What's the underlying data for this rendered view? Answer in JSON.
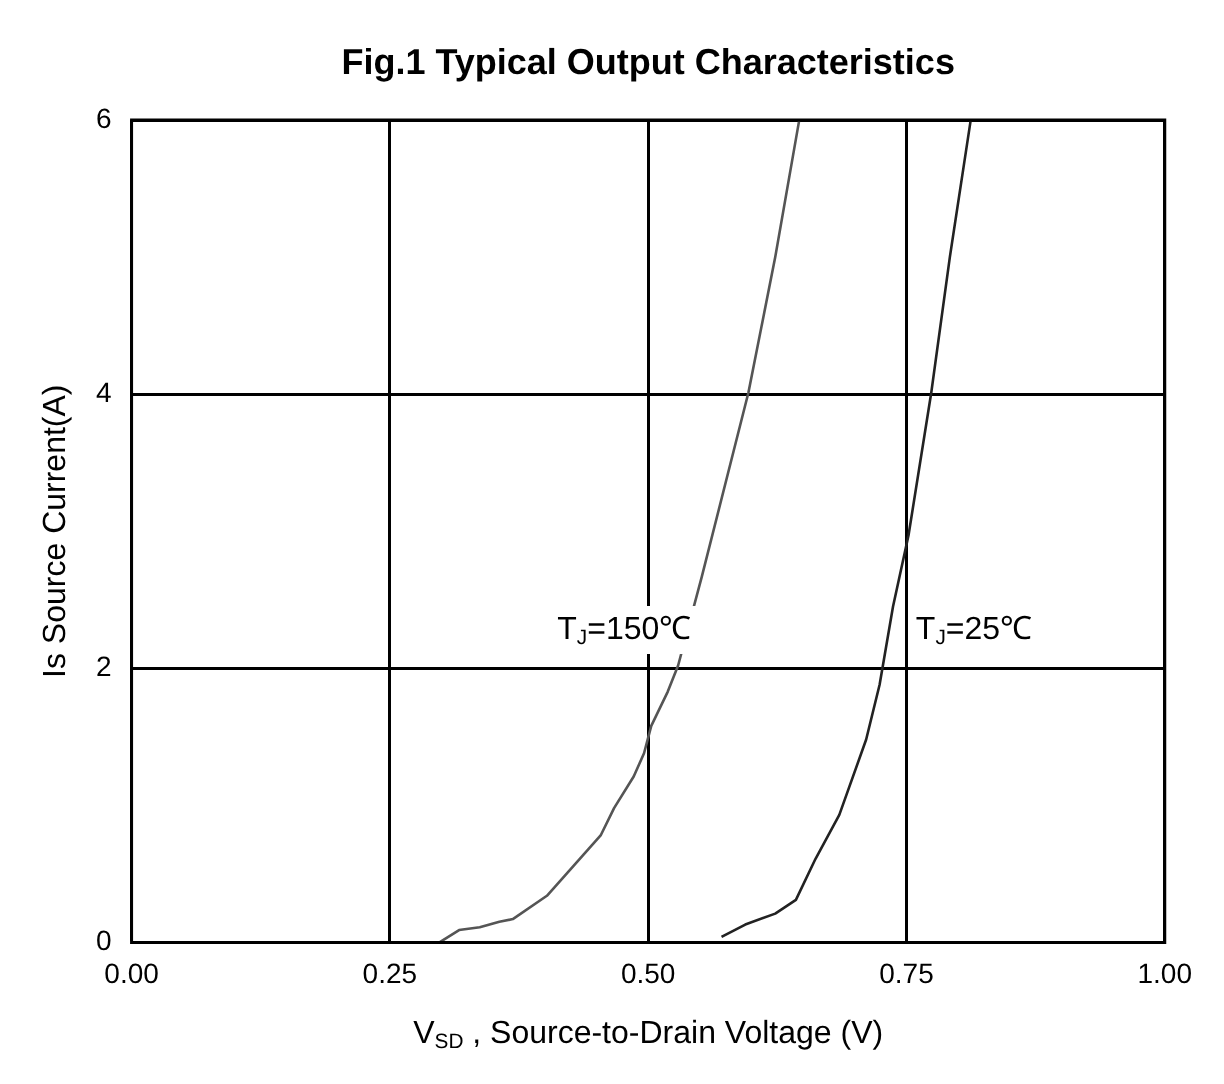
{
  "chart_data": {
    "type": "line",
    "title": "Fig.1 Typical Output Characteristics",
    "xlabel": "V$_{SD}$ , Source-to-Drain Voltage (V)",
    "ylabel": "Is Source Current(A)",
    "series": [
      {
        "name": "T$_{J}$=150℃",
        "color": "#555555",
        "x": [
          0.298,
          0.317,
          0.337,
          0.356,
          0.369,
          0.402,
          0.428,
          0.454,
          0.467,
          0.486,
          0.496,
          0.503,
          0.519,
          0.529,
          0.552,
          0.597,
          0.623,
          0.646
        ],
        "values": [
          0.0,
          0.09,
          0.11,
          0.15,
          0.17,
          0.34,
          0.56,
          0.78,
          0.98,
          1.21,
          1.38,
          1.58,
          1.83,
          2.02,
          2.67,
          4.01,
          5.0,
          5.99
        ]
      },
      {
        "name": "T$_{J}$=25℃",
        "color": "#222222",
        "x": [
          0.571,
          0.594,
          0.623,
          0.643,
          0.662,
          0.685,
          0.711,
          0.724,
          0.737,
          0.752,
          0.774,
          0.792,
          0.812
        ],
        "values": [
          0.04,
          0.13,
          0.21,
          0.31,
          0.61,
          0.93,
          1.48,
          1.88,
          2.45,
          2.97,
          4.01,
          5.0,
          5.99
        ]
      }
    ],
    "xlim": [
      0,
      1
    ],
    "xticks": [
      {
        "value": 0,
        "label": "0.00"
      },
      {
        "value": 0.25,
        "label": "0.25"
      },
      {
        "value": 0.5,
        "label": "0.50"
      },
      {
        "value": 0.75,
        "label": "0.75"
      },
      {
        "value": 1,
        "label": "1.00"
      }
    ],
    "ylim": [
      0,
      6
    ],
    "yticks": [
      0,
      2,
      4,
      6
    ],
    "grid": true,
    "legend": false,
    "marker": "none",
    "line_style": "solid"
  }
}
